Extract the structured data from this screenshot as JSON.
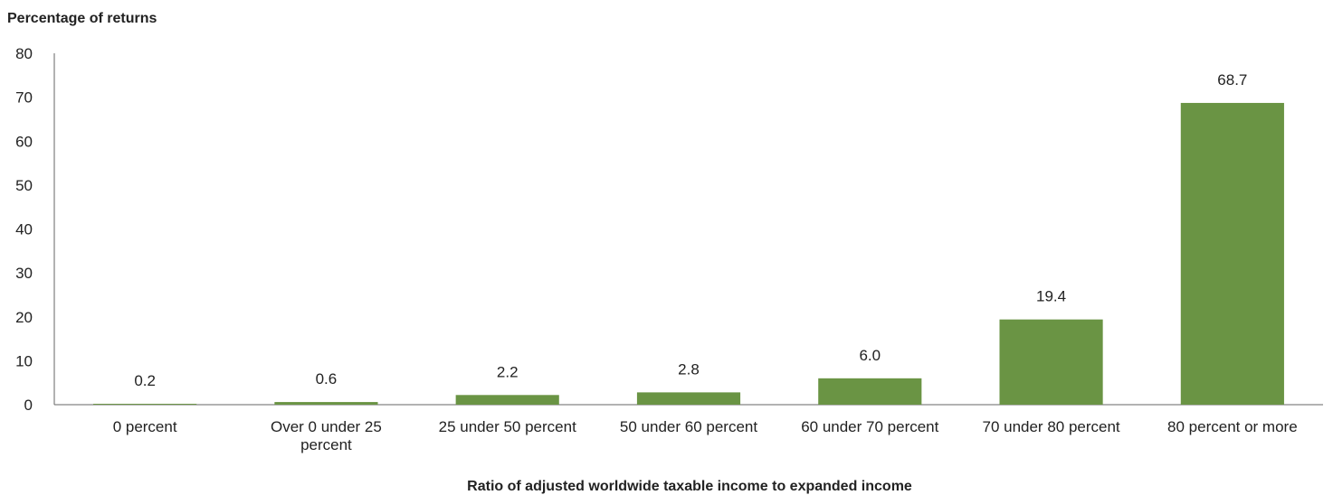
{
  "chart_data": {
    "type": "bar",
    "ylabel": "Percentage of returns",
    "xlabel": "Ratio of adjusted worldwide taxable income to expanded income",
    "categories": [
      [
        "0 percent"
      ],
      [
        "Over 0 under 25",
        "percent"
      ],
      [
        "25 under 50 percent"
      ],
      [
        "50 under 60 percent"
      ],
      [
        "60 under 70 percent"
      ],
      [
        "70 under 80 percent"
      ],
      [
        "80 percent or more"
      ]
    ],
    "values": [
      0.2,
      0.6,
      2.2,
      2.8,
      6.0,
      19.4,
      68.7
    ],
    "value_labels": [
      "0.2",
      "0.6",
      "2.2",
      "2.8",
      "6.0",
      "19.4",
      "68.7"
    ],
    "ylim": [
      0,
      80
    ],
    "yticks": [
      0,
      10,
      20,
      30,
      40,
      50,
      60,
      70,
      80
    ],
    "grid": false,
    "legend": "none",
    "bar_color": "#6a9444"
  }
}
